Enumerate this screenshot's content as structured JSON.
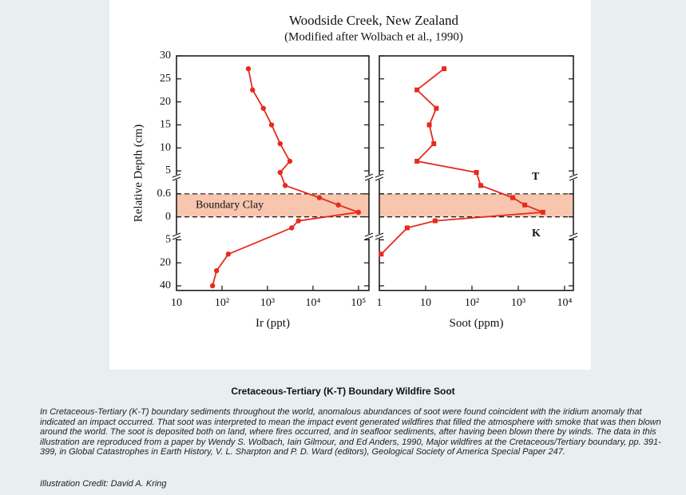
{
  "chart_data": [
    {
      "type": "line",
      "title": "Woodside Creek, New Zealand",
      "subtitle": "(Modified after Wolbach et al., 1990)",
      "y_label": "Relative Depth (cm)",
      "x_label": "Ir (ppt)",
      "log_x": true,
      "color": "#e8291c",
      "xlim": [
        10,
        170000
      ],
      "xticks": [
        {
          "value": 10,
          "label": "10"
        },
        {
          "value": 100,
          "label": "10²"
        },
        {
          "value": 1000,
          "label": "10³"
        },
        {
          "value": 10000,
          "label": "10⁴"
        },
        {
          "value": 100000,
          "label": "10⁵"
        }
      ],
      "ylim": [
        -44,
        30
      ],
      "yticks": [
        30,
        25,
        20,
        15,
        10,
        5,
        0.6,
        0,
        {
          "value": -5,
          "label": "5"
        },
        {
          "value": -20,
          "label": "20"
        },
        {
          "value": -40,
          "label": "40"
        }
      ],
      "band": [
        0,
        0.6
      ],
      "band_color": "#f8c6ae",
      "band_label": "Boundary Clay",
      "values": [
        380,
        470,
        810,
        1230,
        1900,
        3100,
        1900,
        2450,
        13800,
        36000,
        100000,
        4800,
        3400,
        138,
        76,
        62
      ],
      "depths": [
        27.2,
        22.6,
        18.6,
        15,
        10.9,
        7.1,
        4.7,
        2.2,
        0.5,
        0.31,
        0.12,
        -0.86,
        -2.4,
        -14.3,
        -26.9,
        -40
      ]
    },
    {
      "type": "line",
      "x_label": "Soot (ppm)",
      "log_x": true,
      "color": "#e8291c",
      "xlim": [
        1,
        15500
      ],
      "xticks": [
        1,
        10,
        {
          "value": 100,
          "label": "10²"
        },
        {
          "value": 1000,
          "label": "10³"
        },
        {
          "value": 10000,
          "label": "10⁴"
        }
      ],
      "annotations": [
        "T",
        "K"
      ],
      "values": [
        25,
        6.5,
        17,
        12,
        15,
        6.5,
        125,
        155,
        760,
        1380,
        3400,
        16,
        4,
        1.1
      ],
      "depths": [
        27.2,
        22.6,
        18.6,
        15,
        10.9,
        7.1,
        4.7,
        2.2,
        0.5,
        0.31,
        0.12,
        -0.86,
        -2.4,
        -14.3
      ]
    }
  ],
  "caption": {
    "title": "Cretaceous-Tertiary (K-T) Boundary Wildfire Soot",
    "text": "In Cretaceous-Tertiary (K-T) boundary sediments throughout the world, anomalous abundances of soot were found coincident with the iridium anomaly that indicated an impact occurred.  That soot was interpreted to mean the impact event generated wildfires that filled the atmosphere with smoke that was then blown around the world.  The soot is deposited both on land, where fires occurred, and in seafloor sediments, after having been blown there by winds.  The data in this illustration are reproduced from a paper by Wendy S. Wolbach, Iain Gilmour, and Ed Anders, 1990, Major wildfires at the Cretaceous/Tertiary boundary, pp. 391-399, in Global Catastrophes in Earth History, V. L. Sharpton and P. D. Ward (editors), Geological Society of America Special Paper 247.",
    "credit": "Illustration Credit:  David A. Kring"
  }
}
